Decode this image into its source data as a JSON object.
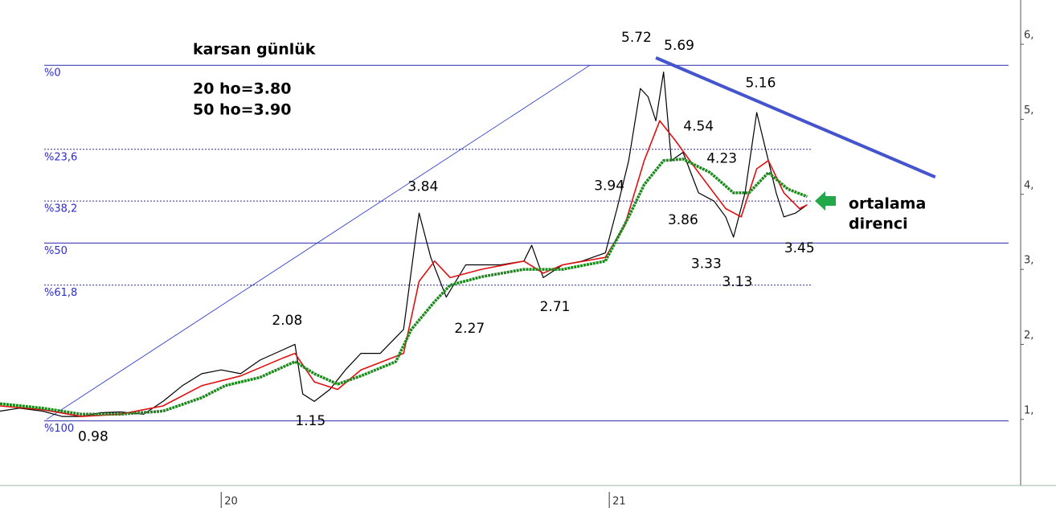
{
  "chart_data": {
    "type": "line",
    "title": "karsan günlük",
    "annotations": [
      "20 ho=3.80",
      "50 ho=3.90"
    ],
    "callout": [
      "ortalama",
      "direnci"
    ],
    "xlim": [
      19.43,
      22.06
    ],
    "ylim": [
      0.13,
      6.59
    ],
    "xticks": [
      20,
      21
    ],
    "yticks": [
      {
        "value": 1,
        "label": "1,"
      },
      {
        "value": 2,
        "label": "2,"
      },
      {
        "value": 3,
        "label": "3,"
      },
      {
        "value": 4,
        "label": "4,"
      },
      {
        "value": 5,
        "label": "5,"
      },
      {
        "value": 6,
        "label": "6,"
      }
    ],
    "series": [
      {
        "color": "#000000",
        "x": [
          19.43,
          19.48,
          19.54,
          19.59,
          19.64,
          19.69,
          19.74,
          19.8,
          19.85,
          19.9,
          19.95,
          20.0,
          20.05,
          20.1,
          20.16,
          20.19,
          20.21,
          20.24,
          20.28,
          20.32,
          20.36,
          20.41,
          20.47,
          20.5,
          20.51,
          20.54,
          20.58,
          20.63,
          20.67,
          20.72,
          20.78,
          20.8,
          20.83,
          20.88,
          20.93,
          20.99,
          21.02,
          21.05,
          21.08,
          21.1,
          21.12,
          21.14,
          21.16,
          21.19,
          21.23,
          21.27,
          21.3,
          21.32,
          21.35,
          21.38,
          21.41,
          21.43,
          21.45,
          21.48,
          21.51
        ],
        "values": [
          1.11,
          1.15,
          1.11,
          1.04,
          1.04,
          1.09,
          1.1,
          1.07,
          1.24,
          1.45,
          1.61,
          1.66,
          1.61,
          1.79,
          1.93,
          2.0,
          1.34,
          1.24,
          1.4,
          1.66,
          1.88,
          1.88,
          2.2,
          3.38,
          3.75,
          3.16,
          2.63,
          3.06,
          3.06,
          3.06,
          3.11,
          3.32,
          2.89,
          3.06,
          3.11,
          3.22,
          3.81,
          4.45,
          5.41,
          5.3,
          4.98,
          5.63,
          4.45,
          4.56,
          4.02,
          3.91,
          3.7,
          3.43,
          4.02,
          5.09,
          4.45,
          4.02,
          3.7,
          3.75,
          3.86
        ]
      },
      {
        "color": "#e01010",
        "x": [
          19.43,
          19.54,
          19.64,
          19.74,
          19.85,
          19.95,
          20.05,
          20.16,
          20.19,
          20.24,
          20.3,
          20.36,
          20.47,
          20.51,
          20.55,
          20.59,
          20.67,
          20.78,
          20.83,
          20.88,
          20.99,
          21.04,
          21.09,
          21.13,
          21.17,
          21.23,
          21.3,
          21.34,
          21.38,
          21.41,
          21.45,
          21.49,
          21.51
        ],
        "values": [
          1.18,
          1.13,
          1.04,
          1.07,
          1.18,
          1.45,
          1.58,
          1.82,
          1.88,
          1.5,
          1.4,
          1.66,
          1.88,
          2.84,
          3.11,
          2.89,
          3.0,
          3.11,
          2.95,
          3.06,
          3.16,
          3.59,
          4.45,
          4.98,
          4.72,
          4.29,
          3.81,
          3.7,
          4.34,
          4.45,
          4.02,
          3.81,
          3.86
        ]
      },
      {
        "color": "#1a8a1a",
        "x": [
          19.43,
          19.54,
          19.64,
          19.74,
          19.85,
          19.95,
          20.01,
          20.1,
          20.19,
          20.24,
          20.3,
          20.36,
          20.45,
          20.49,
          20.55,
          20.59,
          20.67,
          20.78,
          20.88,
          20.99,
          21.05,
          21.09,
          21.14,
          21.19,
          21.26,
          21.32,
          21.36,
          21.41,
          21.46,
          21.51
        ],
        "values": [
          1.21,
          1.15,
          1.07,
          1.07,
          1.11,
          1.29,
          1.45,
          1.56,
          1.77,
          1.61,
          1.47,
          1.58,
          1.77,
          2.2,
          2.57,
          2.79,
          2.9,
          3.0,
          3.0,
          3.11,
          3.7,
          4.13,
          4.45,
          4.47,
          4.29,
          4.02,
          4.02,
          4.29,
          4.07,
          3.97
        ]
      }
    ],
    "fib_levels": [
      {
        "label": "%0",
        "value": 5.72,
        "dashed": false
      },
      {
        "label": "%23,6",
        "value": 4.6,
        "dashed": true
      },
      {
        "label": "%38,2",
        "value": 3.91,
        "dashed": true
      },
      {
        "label": "%50",
        "value": 3.35,
        "dashed": false
      },
      {
        "label": "%61,8",
        "value": 2.79,
        "dashed": true
      },
      {
        "label": "%100",
        "value": 0.98,
        "dashed": false
      }
    ],
    "trendlines": [
      {
        "color": "#1f2fd0",
        "x": [
          19.55,
          20.95
        ],
        "values": [
          1.0,
          5.72
        ]
      },
      {
        "color": "#4454cc",
        "x": [
          21.12,
          21.84
        ],
        "values": [
          5.82,
          4.23
        ]
      }
    ],
    "price_labels": {
      "x": [
        21.07,
        21.18,
        21.39,
        21.23,
        21.29,
        21.0,
        20.52,
        21.19,
        21.25,
        21.33,
        21.49,
        20.86,
        20.64,
        20.17,
        20.23,
        19.67
      ],
      "values": [
        5.72,
        5.69,
        5.16,
        4.54,
        4.23,
        3.94,
        3.84,
        3.86,
        3.33,
        3.13,
        3.45,
        2.71,
        2.27,
        2.08,
        1.15,
        0.98
      ]
    }
  }
}
